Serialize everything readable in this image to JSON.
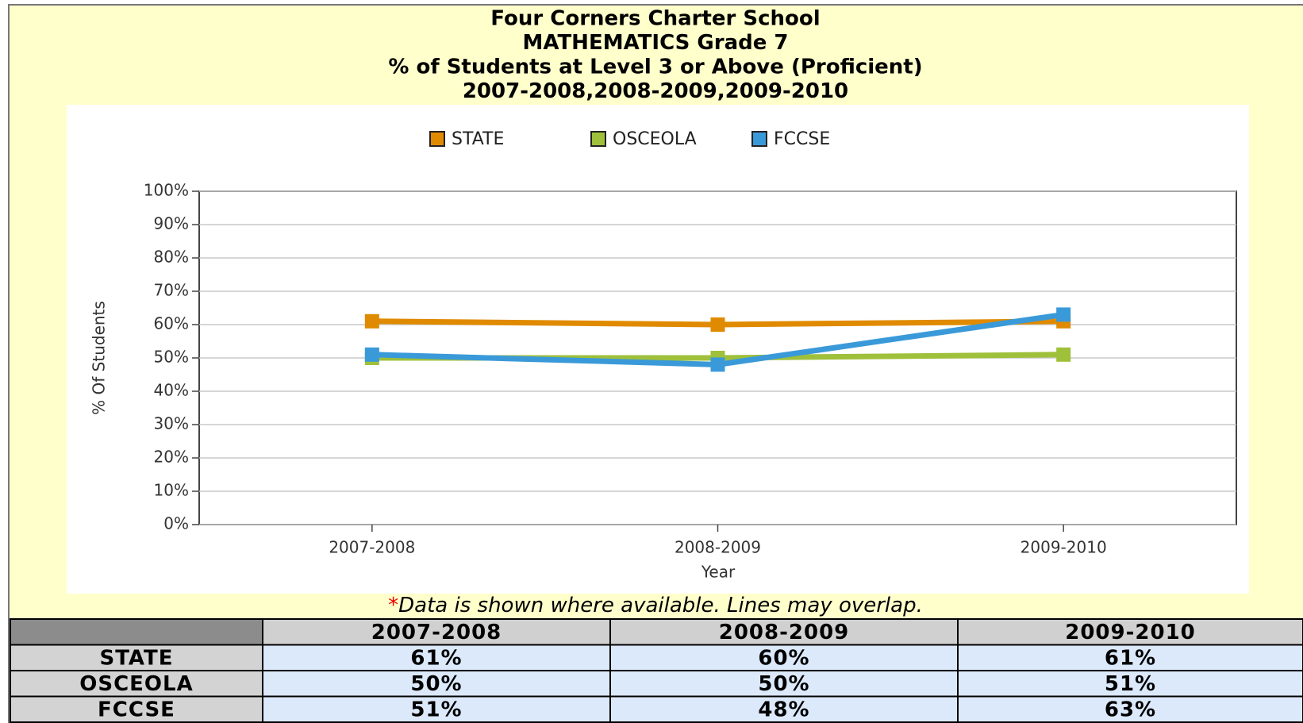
{
  "chart_data": {
    "type": "line",
    "title": [
      "Four Corners Charter School",
      "MATHEMATICS Grade 7",
      "% of Students at Level 3 or Above (Proficient)",
      "2007-2008,2008-2009,2009-2010"
    ],
    "categories": [
      "2007-2008",
      "2008-2009",
      "2009-2010"
    ],
    "series": [
      {
        "name": "STATE",
        "color": "#e08a00",
        "values": [
          61,
          60,
          61
        ],
        "value_labels": [
          "61%",
          "60%",
          "61%"
        ]
      },
      {
        "name": "OSCEOLA",
        "color": "#9fc03a",
        "values": [
          50,
          50,
          51
        ],
        "value_labels": [
          "50%",
          "50%",
          "51%"
        ]
      },
      {
        "name": "FCCSE",
        "color": "#3a9ad9",
        "values": [
          51,
          48,
          63
        ],
        "value_labels": [
          "51%",
          "48%",
          "63%"
        ]
      }
    ],
    "xlabel": "Year",
    "ylabel": "% Of Students",
    "ylim": [
      0,
      100
    ],
    "yticks": [
      {
        "value": 0,
        "label": "0%"
      },
      {
        "value": 10,
        "label": "10%"
      },
      {
        "value": 20,
        "label": "20%"
      },
      {
        "value": 30,
        "label": "30%"
      },
      {
        "value": 40,
        "label": "40%"
      },
      {
        "value": 50,
        "label": "50%"
      },
      {
        "value": 60,
        "label": "60%"
      },
      {
        "value": 70,
        "label": "70%"
      },
      {
        "value": 80,
        "label": "80%"
      },
      {
        "value": 90,
        "label": "90%"
      },
      {
        "value": 100,
        "label": "100%"
      }
    ],
    "grid": true,
    "legend": "top",
    "note_mark": "*",
    "note": "Data is shown where available. Lines may overlap."
  }
}
